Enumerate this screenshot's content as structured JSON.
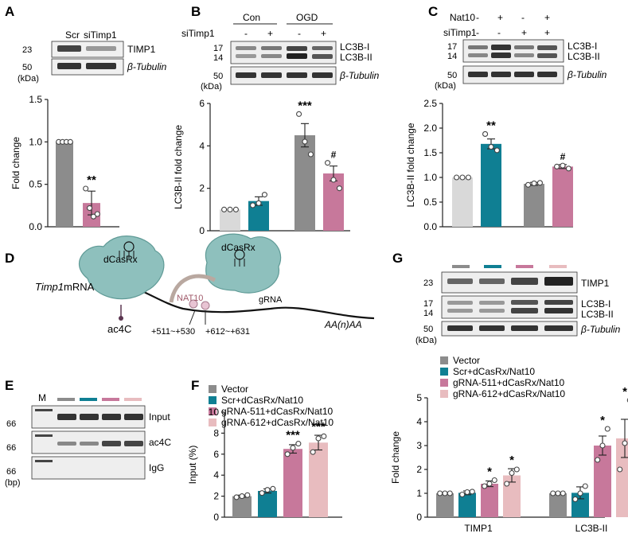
{
  "panels": {
    "A": {
      "letter": "A",
      "blot_labels": [
        "Scr",
        "siTimp1"
      ],
      "markers": [
        "23",
        "50",
        "(kDa)"
      ],
      "bands": [
        "TIMP1",
        "β-Tubulin"
      ]
    },
    "B": {
      "letter": "B",
      "groups": [
        "Con",
        "OGD"
      ],
      "row_label": "siTimp1",
      "row_signs": [
        "-",
        "+",
        "-",
        "+"
      ],
      "markers": [
        "17",
        "14",
        "50",
        "(kDa)"
      ],
      "bands": [
        "LC3B-I",
        "LC3B-II",
        "β-Tubulin"
      ]
    },
    "C": {
      "letter": "C",
      "row1_label": "Nat10",
      "row1_signs": [
        "-",
        "+",
        "-",
        "+"
      ],
      "row2_label": "siTimp1",
      "row2_signs": [
        "-",
        "-",
        "+",
        "+"
      ],
      "markers": [
        "17",
        "14",
        "50",
        "(kDa)"
      ],
      "bands": [
        "LC3B-I",
        "LC3B-II",
        "β-Tubulin"
      ]
    },
    "D": {
      "letter": "D",
      "mrna": "Timp1",
      "mrna_suffix": " mRNA",
      "protein1": "dCasRx",
      "protein2": "dCasRx",
      "nat10": "NAT10",
      "grna": "gRNA",
      "ac4c": "ac4C",
      "site1": "+511~+530",
      "site2": "+612~+631",
      "tail": "AA(n)AA"
    },
    "E": {
      "letter": "E",
      "lane_m": "M",
      "markers": [
        "66",
        "66",
        "66",
        "(bp)"
      ],
      "bands": [
        "Input",
        "ac4C",
        "IgG"
      ]
    },
    "F": {
      "letter": "F",
      "legend": [
        "Vector",
        "Scr+dCasRx/Nat10",
        "gRNA-511+dCasRx/Nat10",
        "gRNA-612+dCasRx/Nat10"
      ]
    },
    "G": {
      "letter": "G",
      "markers": [
        "23",
        "17",
        "14",
        "50",
        "(kDa)"
      ],
      "bands": [
        "TIMP1",
        "LC3B-I",
        "LC3B-II",
        "β-Tubulin"
      ],
      "legend": [
        "Vector",
        "Scr+dCasRx/Nat10",
        "gRNA-511+dCasRx/Nat10",
        "gRNA-612+dCasRx/Nat10"
      ]
    }
  },
  "colors": {
    "gray": "#8c8c8c",
    "teal": "#0f7f93",
    "pink": "#c7789b",
    "lightpink": "#e8bcbf",
    "lightgray": "#d9d9d9"
  },
  "chart_data": [
    {
      "id": "A",
      "type": "bar",
      "ylabel": "Fold change",
      "ylim": [
        0,
        1.5
      ],
      "yticks": [
        0.0,
        0.5,
        1.0,
        1.5
      ],
      "values": [
        1.0,
        0.28
      ],
      "errors": [
        0,
        0.14
      ],
      "colors": [
        "#8c8c8c",
        "#c7789b"
      ],
      "points": [
        [
          1.0,
          1.0,
          1.0,
          1.0
        ],
        [
          0.45,
          0.22,
          0.12,
          0.15
        ]
      ],
      "sig": [
        "",
        "**"
      ]
    },
    {
      "id": "B",
      "type": "bar",
      "ylabel": "LC3B-II fold change",
      "ylim": [
        0,
        6
      ],
      "yticks": [
        0,
        2,
        4,
        6
      ],
      "values": [
        1.0,
        1.4,
        4.5,
        2.7
      ],
      "errors": [
        0,
        0.2,
        0.55,
        0.35
      ],
      "colors": [
        "#d9d9d9",
        "#0f7f93",
        "#8c8c8c",
        "#c7789b"
      ],
      "points": [
        [
          1.0,
          1.0,
          1.0
        ],
        [
          1.2,
          1.3,
          1.7
        ],
        [
          5.5,
          4.2,
          3.6
        ],
        [
          3.2,
          2.4,
          2.0
        ]
      ],
      "sig": [
        "",
        "",
        "***",
        "#"
      ]
    },
    {
      "id": "C",
      "type": "bar",
      "ylabel": "LC3B-II fold change",
      "ylim": [
        0,
        2.5
      ],
      "yticks": [
        0.0,
        0.5,
        1.0,
        1.5,
        2.0,
        2.5
      ],
      "values": [
        1.0,
        1.68,
        0.87,
        1.22
      ],
      "errors": [
        0,
        0.1,
        0.03,
        0.04
      ],
      "colors": [
        "#d9d9d9",
        "#0f7f93",
        "#8c8c8c",
        "#c7789b"
      ],
      "points": [
        [
          1.0,
          1.0,
          1.0
        ],
        [
          1.88,
          1.62,
          1.55
        ],
        [
          0.85,
          0.88,
          0.89
        ],
        [
          1.22,
          1.24,
          1.18
        ]
      ],
      "sig": [
        "",
        "**",
        "",
        "#"
      ]
    },
    {
      "id": "F",
      "type": "bar",
      "ylabel": "Input (%)",
      "ylim": [
        0,
        10
      ],
      "yticks": [
        0,
        2,
        4,
        6,
        8,
        10
      ],
      "values": [
        2.0,
        2.5,
        6.5,
        7.1
      ],
      "errors": [
        0.1,
        0.2,
        0.4,
        0.7
      ],
      "colors": [
        "#8c8c8c",
        "#0f7f93",
        "#c7789b",
        "#e8bcbf"
      ],
      "points": [
        [
          1.9,
          2.0,
          2.1
        ],
        [
          2.3,
          2.6,
          2.7
        ],
        [
          6.0,
          6.6,
          7.0
        ],
        [
          6.2,
          7.5,
          7.7
        ]
      ],
      "sig": [
        "",
        "",
        "***",
        "***"
      ]
    },
    {
      "id": "G",
      "type": "bar",
      "ylabel": "Fold change",
      "ylim": [
        0,
        5
      ],
      "yticks": [
        0,
        1,
        2,
        3,
        4,
        5
      ],
      "categories": [
        "TIMP1",
        "LC3B-II"
      ],
      "groups": [
        {
          "values": [
            1.0,
            1.02,
            1.4,
            1.75
          ],
          "errors": [
            0,
            0.08,
            0.12,
            0.28
          ],
          "points": [
            [
              1.0,
              1.0,
              1.0
            ],
            [
              0.95,
              1.05,
              1.07
            ],
            [
              1.3,
              1.4,
              1.55
            ],
            [
              1.4,
              1.85,
              2.0
            ]
          ],
          "sig": [
            "",
            "",
            "*",
            "*"
          ]
        },
        {
          "values": [
            1.0,
            1.02,
            3.0,
            3.3
          ],
          "errors": [
            0,
            0.25,
            0.4,
            0.8
          ],
          "points": [
            [
              1.0,
              1.0,
              1.0
            ],
            [
              0.75,
              1.0,
              1.3
            ],
            [
              2.4,
              3.0,
              3.7
            ],
            [
              2.0,
              3.1,
              4.9
            ]
          ],
          "sig": [
            "",
            "",
            "*",
            "*"
          ]
        }
      ],
      "colors": [
        "#8c8c8c",
        "#0f7f93",
        "#c7789b",
        "#e8bcbf"
      ]
    }
  ]
}
